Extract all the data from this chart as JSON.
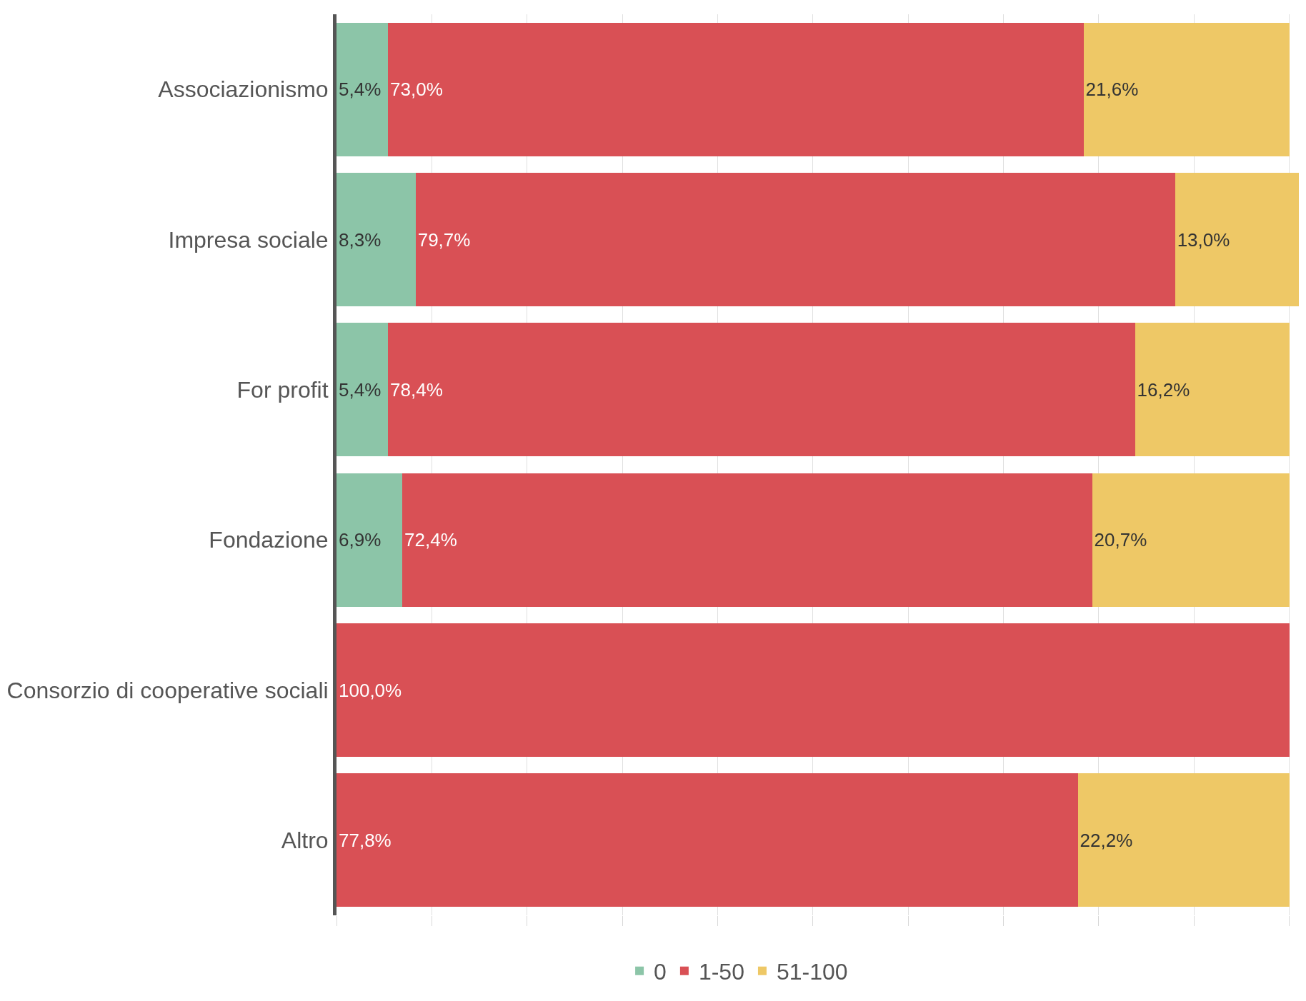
{
  "chart_data": {
    "type": "bar",
    "orientation": "horizontal",
    "stacked": true,
    "categories": [
      "Associazionismo",
      "Impresa sociale",
      "For profit",
      "Fondazione",
      "Consorzio di cooperative sociali",
      "Altro"
    ],
    "series": [
      {
        "name": "0",
        "color": "#8cc5a8",
        "values": [
          5.4,
          8.3,
          5.4,
          6.9,
          0,
          0
        ],
        "value_labels": [
          "5,4%",
          "8,3%",
          "5,4%",
          "6,9%",
          null,
          null
        ]
      },
      {
        "name": "1-50",
        "color": "#d95055",
        "values": [
          73.0,
          79.7,
          78.4,
          72.4,
          100.0,
          77.8
        ],
        "value_labels": [
          "73,0%",
          "79,7%",
          "78,4%",
          "72,4%",
          "100,0%",
          "77,8%"
        ]
      },
      {
        "name": "51-100",
        "color": "#eec866",
        "values": [
          21.6,
          13.0,
          16.2,
          20.7,
          0,
          22.2
        ],
        "value_labels": [
          "21,6%",
          "13,0%",
          "16,2%",
          "20,7%",
          null,
          "22,2%"
        ]
      }
    ],
    "xlim": [
      0,
      101
    ],
    "xticks": [
      {
        "value": 0,
        "label": null
      },
      {
        "value": 10,
        "label": null
      },
      {
        "value": 20,
        "label": null
      },
      {
        "value": 30,
        "label": null
      },
      {
        "value": 40,
        "label": null
      },
      {
        "value": 50,
        "label": null
      },
      {
        "value": 60,
        "label": null
      },
      {
        "value": 70,
        "label": null
      },
      {
        "value": 80,
        "label": null
      },
      {
        "value": 90,
        "label": null
      },
      {
        "value": 100,
        "label": null
      }
    ],
    "grid": "x",
    "tick_labels": "y",
    "legend": "bottom"
  }
}
